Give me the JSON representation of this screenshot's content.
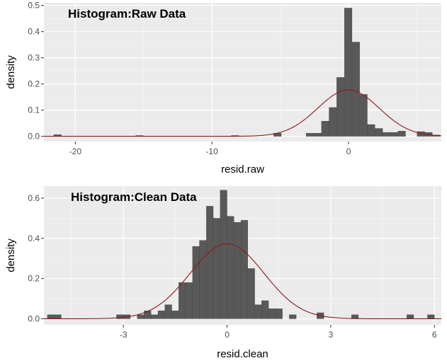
{
  "chart_data": [
    {
      "type": "histogram",
      "title": "Histogram:Raw Data",
      "xlabel": "resid.raw",
      "ylabel": "density",
      "xlim": [
        -22.3,
        6.8
      ],
      "ylim": [
        -0.02,
        0.51
      ],
      "x_ticks": [
        -20,
        -10,
        0
      ],
      "y_ticks": [
        0.0,
        0.1,
        0.2,
        0.3,
        0.4,
        0.5
      ],
      "y_tick_labels": [
        "0.0",
        "0.1",
        "0.2",
        "0.3",
        "0.4",
        "0.5"
      ],
      "bin_width": 0.56,
      "bins": [
        {
          "x": -21.3,
          "density": 0.006
        },
        {
          "x": -15.3,
          "density": 0.003
        },
        {
          "x": -8.3,
          "density": 0.003
        },
        {
          "x": -5.2,
          "density": 0.012
        },
        {
          "x": -2.82,
          "density": 0.012
        },
        {
          "x": -2.26,
          "density": 0.012
        },
        {
          "x": -1.7,
          "density": 0.058
        },
        {
          "x": -1.14,
          "density": 0.11
        },
        {
          "x": -0.58,
          "density": 0.225
        },
        {
          "x": -0.02,
          "density": 0.49
        },
        {
          "x": 0.54,
          "density": 0.36
        },
        {
          "x": 1.1,
          "density": 0.16
        },
        {
          "x": 1.66,
          "density": 0.045
        },
        {
          "x": 2.22,
          "density": 0.03
        },
        {
          "x": 2.78,
          "density": 0.015
        },
        {
          "x": 3.34,
          "density": 0.015
        },
        {
          "x": 3.9,
          "density": 0.02
        },
        {
          "x": 5.3,
          "density": 0.018
        },
        {
          "x": 5.86,
          "density": 0.015
        },
        {
          "x": 6.42,
          "density": 0.005
        }
      ],
      "curve": {
        "type": "normal-density",
        "mean": 0.0,
        "sd": 2.25,
        "color": "#8b1a1a"
      },
      "bar_color": "#595959",
      "panel_background": "#ebebeb",
      "grid": true
    },
    {
      "type": "histogram",
      "title": "Histogram:Clean Data",
      "xlabel": "resid.clean",
      "ylabel": "density",
      "xlim": [
        -5.3,
        6.2
      ],
      "ylim": [
        -0.03,
        0.66
      ],
      "x_ticks": [
        -3,
        0,
        3,
        6
      ],
      "y_ticks": [
        0.0,
        0.2,
        0.4,
        0.6
      ],
      "y_tick_labels": [
        "0.0",
        "0.2",
        "0.4",
        "0.6"
      ],
      "bin_width": 0.2,
      "bins": [
        {
          "x": -5.1,
          "density": 0.02
        },
        {
          "x": -4.9,
          "density": 0.02
        },
        {
          "x": -3.1,
          "density": 0.02
        },
        {
          "x": -2.9,
          "density": 0.02
        },
        {
          "x": -2.5,
          "density": 0.02
        },
        {
          "x": -2.3,
          "density": 0.04
        },
        {
          "x": -2.1,
          "density": 0.02
        },
        {
          "x": -1.9,
          "density": 0.04
        },
        {
          "x": -1.7,
          "density": 0.07
        },
        {
          "x": -1.5,
          "density": 0.04
        },
        {
          "x": -1.3,
          "density": 0.18
        },
        {
          "x": -1.1,
          "density": 0.18
        },
        {
          "x": -0.9,
          "density": 0.36
        },
        {
          "x": -0.7,
          "density": 0.39
        },
        {
          "x": -0.5,
          "density": 0.56
        },
        {
          "x": -0.3,
          "density": 0.5
        },
        {
          "x": -0.1,
          "density": 0.64
        },
        {
          "x": 0.1,
          "density": 0.51
        },
        {
          "x": 0.3,
          "density": 0.48
        },
        {
          "x": 0.5,
          "density": 0.49
        },
        {
          "x": 0.7,
          "density": 0.25
        },
        {
          "x": 0.9,
          "density": 0.07
        },
        {
          "x": 1.1,
          "density": 0.09
        },
        {
          "x": 1.3,
          "density": 0.05
        },
        {
          "x": 1.5,
          "density": 0.05
        },
        {
          "x": 1.9,
          "density": 0.02
        },
        {
          "x": 2.7,
          "density": 0.03
        },
        {
          "x": 3.7,
          "density": 0.02
        },
        {
          "x": 5.3,
          "density": 0.02
        },
        {
          "x": 5.9,
          "density": 0.02
        }
      ],
      "curve": {
        "type": "normal-density",
        "mean": 0.0,
        "sd": 1.07,
        "color": "#8b1a1a"
      },
      "bar_color": "#595959",
      "panel_background": "#ebebeb",
      "grid": true
    }
  ]
}
